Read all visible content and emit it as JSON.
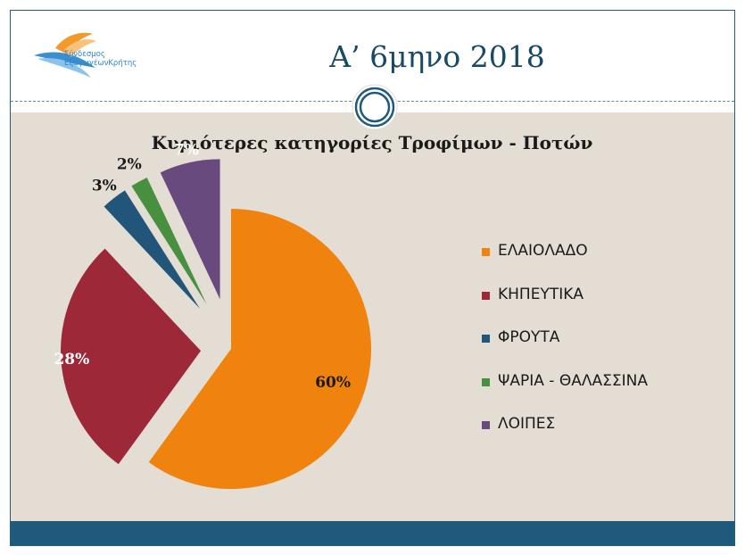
{
  "header": {
    "title": "Α’ 6μηνο 2018",
    "logo_line1": "Σύνδεσμος",
    "logo_line2": "ΕξαγωγέωνΚρήτης"
  },
  "colors": {
    "frame": "#1f5e80",
    "title": "#184965",
    "content_bg": "#e3ddd3",
    "footer": "#1f5a7d"
  },
  "chart_data": {
    "type": "pie",
    "title": "Κυριότερες κατηγορίες Τροφίμων - Ποτών",
    "legend_position": "right",
    "slices": [
      {
        "label": "ΕΛΑΙΟΛΑΔΟ",
        "value": 60,
        "display": "60%",
        "color": "#f0820e"
      },
      {
        "label": "ΚΗΠΕΥΤΙΚΑ",
        "value": 28,
        "display": "28%",
        "color": "#9c2838"
      },
      {
        "label": "ΦΡΟΥΤΑ",
        "value": 3,
        "display": "3%",
        "color": "#21557a"
      },
      {
        "label": "ΨΑΡΙΑ - ΘΑΛΑΣΣΙΝΑ",
        "value": 2,
        "display": "2%",
        "color": "#47903f"
      },
      {
        "label": "ΛΟΙΠΕΣ",
        "value": 7,
        "display": "7%",
        "color": "#684a7e"
      }
    ]
  }
}
